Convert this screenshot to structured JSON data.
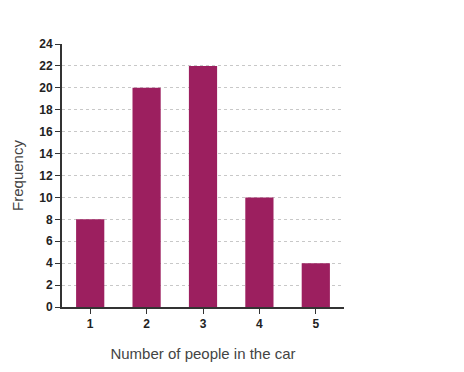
{
  "chart_data": {
    "type": "bar",
    "categories": [
      "1",
      "2",
      "3",
      "4",
      "5"
    ],
    "values": [
      8,
      20,
      22,
      10,
      4
    ],
    "color": "#9c1f5f",
    "xlabel": "Number of people in the car",
    "ylabel": "Frequency",
    "ylim": [
      0,
      24
    ],
    "yticks": [
      0,
      2,
      4,
      6,
      8,
      10,
      12,
      14,
      16,
      18,
      20,
      22,
      24
    ],
    "grid": true
  }
}
